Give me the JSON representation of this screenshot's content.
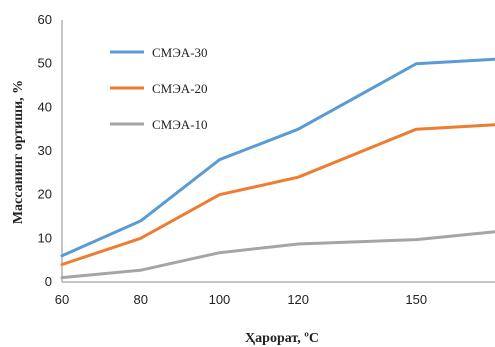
{
  "chart_data": {
    "type": "line",
    "title": "",
    "xlabel": "Ҳарорат, ºC",
    "ylabel": "Массанинг ортиши, %",
    "x": [
      60,
      80,
      100,
      120,
      150,
      170
    ],
    "x_tick_labels": [
      "60",
      "80",
      "100",
      "120",
      "150"
    ],
    "y_tick_labels": [
      "0",
      "10",
      "20",
      "30",
      "40",
      "50",
      "60"
    ],
    "xlim": [
      60,
      170
    ],
    "ylim": [
      0,
      60
    ],
    "grid": false,
    "legend_position": "top-left",
    "series": [
      {
        "name": "СМЭА-30",
        "color": "#5B9BD5",
        "values": [
          6,
          14,
          28,
          35,
          50,
          51
        ]
      },
      {
        "name": "СМЭА-20",
        "color": "#ED7D31",
        "values": [
          4,
          10,
          20,
          24,
          35,
          36
        ]
      },
      {
        "name": "СМЭА-10",
        "color": "#A5A5A5",
        "values": [
          1,
          2.7,
          6.7,
          8.7,
          9.7,
          11.5
        ]
      }
    ]
  }
}
